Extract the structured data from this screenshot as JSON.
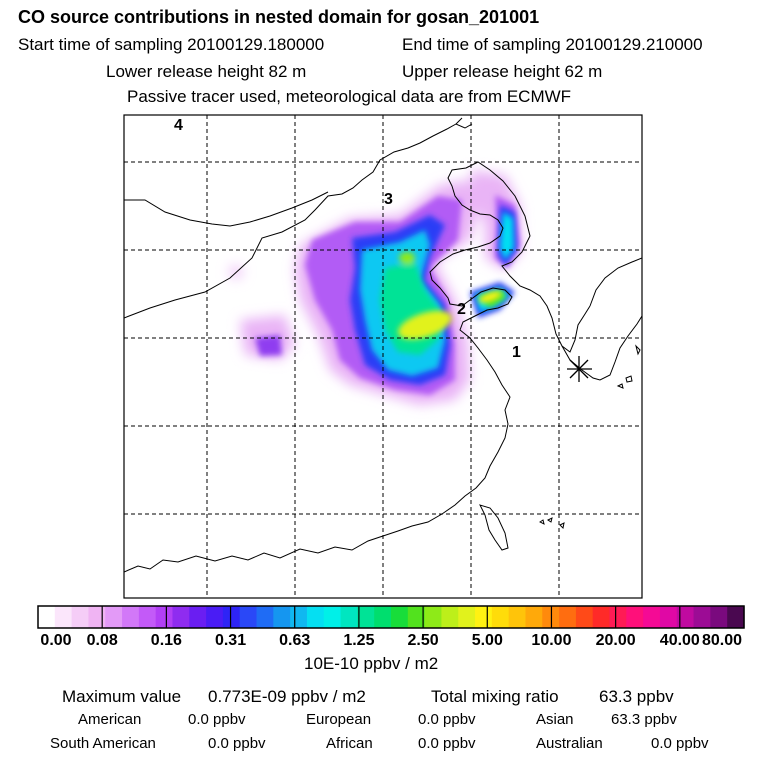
{
  "header": {
    "title": "CO  source contributions in nested domain for gosan_201001",
    "start_time": "Start time of sampling 20100129.180000",
    "end_time": "End time of sampling 20100129.210000",
    "lower_release": "Lower release height   82 m",
    "upper_release": "Upper release height   62 m",
    "tracer_note": "Passive tracer used, meteorological data are from ECMWF"
  },
  "map": {
    "labels": [
      "4",
      "3",
      "2",
      "1"
    ]
  },
  "colorbar": {
    "ticks": [
      "0.00",
      "0.08",
      "0.16",
      "0.31",
      "0.63",
      "1.25",
      "2.50",
      "5.00",
      "10.00",
      "20.00",
      "40.00",
      "80.00"
    ],
    "units": "10E-10 ppbv / m2",
    "colors": [
      "#ffffff",
      "#fbe6fb",
      "#f5cdf7",
      "#f0b4f3",
      "#e39af7",
      "#d278f8",
      "#c35af8",
      "#b23ff5",
      "#8f2cf0",
      "#6a1ef2",
      "#4a1cf5",
      "#2e24f6",
      "#2a48f7",
      "#1f6cf5",
      "#1596f0",
      "#10b8f0",
      "#05dff2",
      "#00f0e8",
      "#00e6c0",
      "#00e396",
      "#00de6e",
      "#18dd3a",
      "#52e21e",
      "#8eea18",
      "#bdef1a",
      "#e1f21c",
      "#fff212",
      "#ffdc0a",
      "#ffc40a",
      "#ffa90a",
      "#ff8a0c",
      "#ff6d10",
      "#ff4a18",
      "#ff2a28",
      "#ff1b55",
      "#ff107a",
      "#f50a95",
      "#e008a5",
      "#c00aa0",
      "#9c0c95",
      "#7a0a7e",
      "#4a0850"
    ]
  },
  "summary": {
    "max_label": "Maximum value",
    "max_value": "0.773E-09 ppbv / m2",
    "total_label": "Total mixing ratio",
    "total_value": "63.3 ppbv",
    "regions": [
      {
        "name": "American",
        "value": "0.0 ppbv"
      },
      {
        "name": "European",
        "value": "0.0 ppbv"
      },
      {
        "name": "Asian",
        "value": "63.3 ppbv"
      },
      {
        "name": "South American",
        "value": "0.0 ppbv"
      },
      {
        "name": "African",
        "value": "0.0 ppbv"
      },
      {
        "name": "Australian",
        "value": "0.0 ppbv"
      }
    ]
  }
}
